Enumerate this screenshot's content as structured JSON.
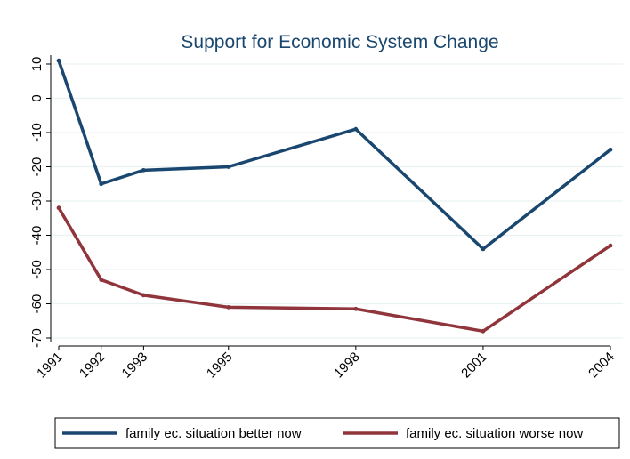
{
  "chart_data": {
    "type": "line",
    "title": "Support for Economic System Change",
    "xlabel": "",
    "ylabel": "",
    "x": [
      1991,
      1992,
      1993,
      1995,
      1998,
      2001,
      2004
    ],
    "x_tick_labels": [
      "1991",
      "1992",
      "1993",
      "1995",
      "1998",
      "2001",
      "2004"
    ],
    "y_ticks": [
      10,
      0,
      -10,
      -20,
      -30,
      -40,
      -50,
      -60,
      -70
    ],
    "y_tick_labels": [
      "10",
      "0",
      "-10",
      "-20",
      "-30",
      "-40",
      "-50",
      "-60",
      "-70"
    ],
    "ylim": [
      -72,
      12
    ],
    "xlim": [
      1991,
      2004
    ],
    "grid": true,
    "legend_position": "bottom",
    "series": [
      {
        "name": "family ec. situation better now",
        "color": "#1a476f",
        "values": [
          11,
          -25,
          -21,
          -20,
          -9,
          -44,
          -15
        ]
      },
      {
        "name": "family ec. situation worse now",
        "color": "#90353b",
        "values": [
          -32,
          -53,
          -57.5,
          -61,
          -61.5,
          -68,
          -43
        ]
      }
    ]
  }
}
